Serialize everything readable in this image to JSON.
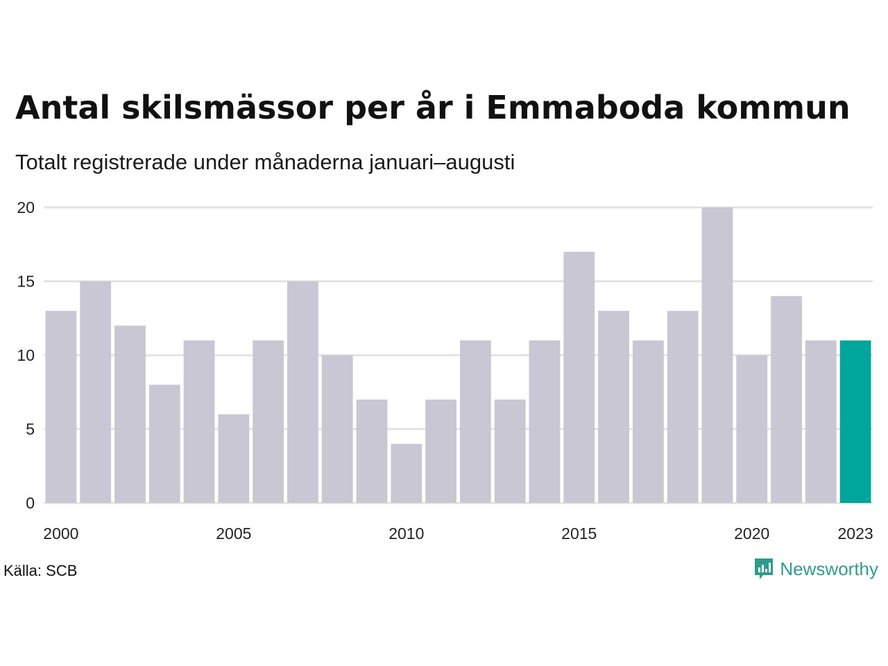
{
  "title": "Antal skilsmässor per år i Emmaboda kommun",
  "subtitle": "Totalt registrerade under månaderna januari–augusti",
  "source": "Källa: SCB",
  "brand": "Newsworthy",
  "colors": {
    "bar": "#c8c7d3",
    "highlight": "#00a59b",
    "grid": "#e3e3e6",
    "brand": "#2e9c8c"
  },
  "chart_data": {
    "type": "bar",
    "categories": [
      "2000",
      "2001",
      "2002",
      "2003",
      "2004",
      "2005",
      "2006",
      "2007",
      "2008",
      "2009",
      "2010",
      "2011",
      "2012",
      "2013",
      "2014",
      "2015",
      "2016",
      "2017",
      "2018",
      "2019",
      "2020",
      "2021",
      "2022",
      "2023"
    ],
    "values": [
      13,
      15,
      12,
      8,
      11,
      6,
      11,
      15,
      10,
      7,
      4,
      7,
      11,
      7,
      11,
      17,
      13,
      11,
      13,
      20,
      10,
      14,
      11,
      11
    ],
    "highlight_category": "2023",
    "x_tick_labels": [
      "2000",
      "2005",
      "2010",
      "2015",
      "2020",
      "2023"
    ],
    "y_ticks": [
      0,
      5,
      10,
      15,
      20
    ],
    "ylim": [
      0,
      20
    ],
    "grid": true,
    "legend": "none"
  }
}
